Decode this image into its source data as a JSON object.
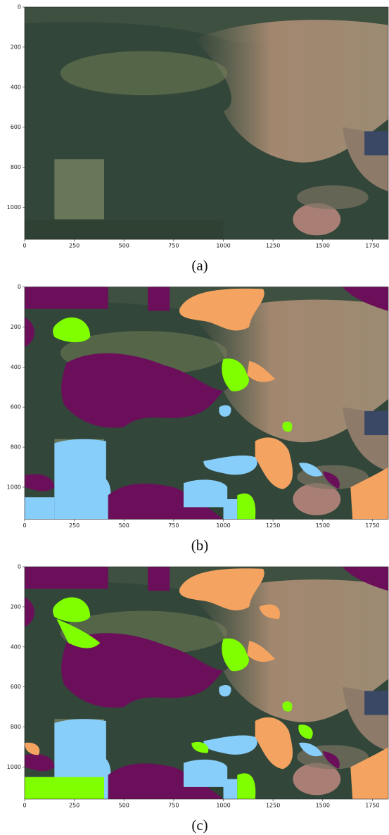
{
  "figure": {
    "xlim": [
      0,
      1830
    ],
    "ylim": [
      1160,
      0
    ],
    "xticks": [
      0,
      250,
      500,
      750,
      1000,
      1250,
      1500,
      1750
    ],
    "yticks": [
      0,
      200,
      400,
      600,
      800,
      1000
    ],
    "panels": [
      {
        "caption": "(a)"
      },
      {
        "caption": "(b)"
      },
      {
        "caption": "(c)"
      }
    ]
  }
}
